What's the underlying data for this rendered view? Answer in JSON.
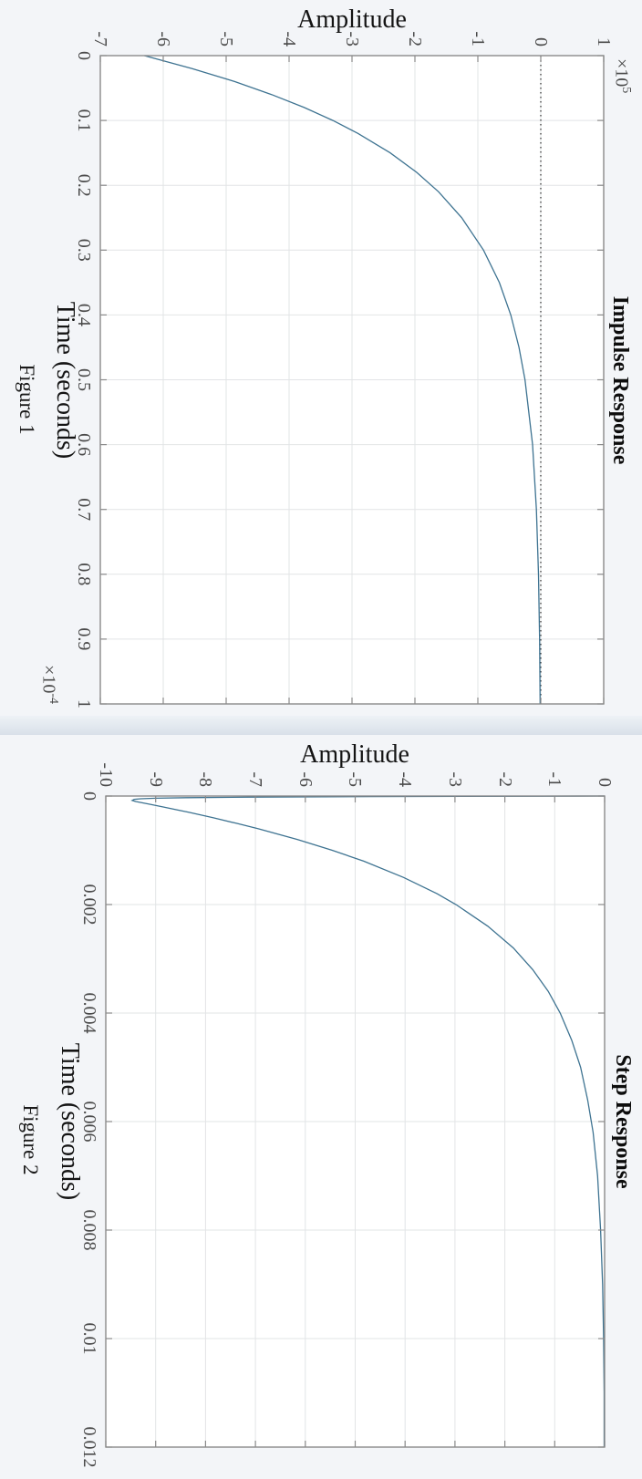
{
  "page": {
    "background": "#e9edf2"
  },
  "chart_data": [
    {
      "type": "line",
      "title": "Impulse Response",
      "ylabel": "Amplitude",
      "xlabel": "Time (seconds)",
      "caption": "Figure 1",
      "orientation_note": "figure rotated 90 degrees clockwise in screenshot",
      "xlim": [
        0,
        0.0001
      ],
      "ylim": [
        -700000,
        100000
      ],
      "x_tick_values": [
        0,
        1e-05,
        2e-05,
        3e-05,
        4e-05,
        5e-05,
        6e-05,
        7e-05,
        8e-05,
        9e-05,
        0.0001
      ],
      "x_tick_labels": [
        "0",
        "0.1",
        "0.2",
        "0.3",
        "0.4",
        "0.5",
        "0.6",
        "0.7",
        "0.8",
        "0.9",
        "1"
      ],
      "x_multiplier_base": "×10",
      "x_multiplier_exp": "-4",
      "y_tick_values": [
        -700000,
        -600000,
        -500000,
        -400000,
        -300000,
        -200000,
        -100000,
        0,
        100000
      ],
      "y_tick_labels": [
        "-7",
        "-6",
        "-5",
        "-4",
        "-3",
        "-2",
        "-1",
        "0",
        "1"
      ],
      "y_multiplier_base": "×10",
      "y_multiplier_exp": "5",
      "grid": true,
      "zero_line": true,
      "legend": "none",
      "line_color": "#3e7391",
      "grid_color": "#e2e4e6",
      "axis_color": "#8a8a8a",
      "series": [
        {
          "name": "impulse response",
          "x": [
            0,
            2e-06,
            4e-06,
            6e-06,
            8e-06,
            1e-05,
            1.2e-05,
            1.5e-05,
            1.8e-05,
            2.1e-05,
            2.5e-05,
            3e-05,
            3.5e-05,
            4e-05,
            4.5e-05,
            5e-05,
            6e-05,
            7e-05,
            8e-05,
            9e-05,
            0.0001
          ],
          "y": [
            -630000,
            -554000,
            -486700,
            -427800,
            -376000,
            -330500,
            -290600,
            -239400,
            -197200,
            -162500,
            -125600,
            -91000,
            -65800,
            -47700,
            -34600,
            -25100,
            -13100,
            -6900,
            -3600,
            -1900,
            -1000
          ]
        }
      ]
    },
    {
      "type": "line",
      "title": "Step Response",
      "ylabel": "Amplitude",
      "xlabel": "Time (seconds)",
      "caption": "Figure 2",
      "orientation_note": "figure rotated 90 degrees clockwise in screenshot",
      "xlim": [
        0,
        0.012
      ],
      "ylim": [
        -10,
        0
      ],
      "x_tick_values": [
        0,
        0.002,
        0.004,
        0.006,
        0.008,
        0.01,
        0.012
      ],
      "x_tick_labels": [
        "0",
        "0.002",
        "0.004",
        "0.006",
        "0.008",
        "0.01",
        "0.012"
      ],
      "y_tick_values": [
        -10,
        -9,
        -8,
        -7,
        -6,
        -5,
        -4,
        -3,
        -2,
        -1,
        0
      ],
      "y_tick_labels": [
        "-10",
        "-9",
        "-8",
        "-7",
        "-6",
        "-5",
        "-4",
        "-3",
        "-2",
        "-1",
        "0"
      ],
      "grid": true,
      "zero_line": false,
      "legend": "none",
      "line_color": "#3e7391",
      "grid_color": "#e2e4e6",
      "axis_color": "#8a8a8a",
      "series": [
        {
          "name": "step response",
          "x": [
            0,
            1e-05,
            2e-05,
            3e-05,
            4e-05,
            5e-05,
            6e-05,
            8e-05,
            0.0001,
            0.00015,
            0.0002,
            0.0003,
            0.0004,
            0.0005,
            0.0006,
            0.0008,
            0.001,
            0.0012,
            0.0015,
            0.0018,
            0.002,
            0.0024,
            0.0028,
            0.0032,
            0.0036,
            0.004,
            0.0045,
            0.005,
            0.0056,
            0.0062,
            0.007,
            0.008,
            0.009,
            0.01,
            0.011,
            0.012
          ],
          "y": [
            0,
            -4.69,
            -7.13,
            -8.38,
            -9.0,
            -9.3,
            -9.43,
            -9.47,
            -9.4,
            -9.13,
            -8.86,
            -8.34,
            -7.85,
            -7.39,
            -6.95,
            -6.16,
            -5.46,
            -4.83,
            -4.03,
            -3.36,
            -2.98,
            -2.34,
            -1.83,
            -1.44,
            -1.13,
            -0.89,
            -0.66,
            -0.48,
            -0.34,
            -0.23,
            -0.14,
            -0.08,
            -0.04,
            -0.02,
            -0.01,
            -0.01
          ]
        }
      ]
    }
  ]
}
